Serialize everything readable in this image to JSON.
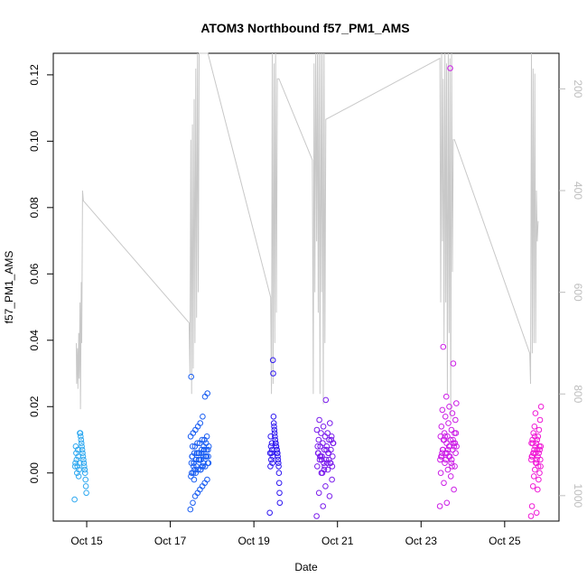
{
  "chart_data": {
    "type": "scatter",
    "title": "ATOM3 Northbound f57_PM1_AMS",
    "xlabel": "Date",
    "ylabel": "f57_PM1_AMS",
    "x_ticks": [
      "Oct 15",
      "Oct 17",
      "Oct 19",
      "Oct 21",
      "Oct 23",
      "Oct 25"
    ],
    "x_tick_days": [
      15,
      17,
      19,
      21,
      23,
      25
    ],
    "xlim_days": [
      14.2,
      26.3
    ],
    "ylim": [
      -0.0145,
      0.1265
    ],
    "y_ticks": [
      0.0,
      0.02,
      0.04,
      0.06,
      0.08,
      0.1,
      0.12
    ],
    "y_tick_labels": [
      "0.00",
      "0.02",
      "0.04",
      "0.06",
      "0.08",
      "0.10",
      "0.12"
    ],
    "y2_ticks": [
      200,
      400,
      600,
      800,
      1000
    ],
    "y2_tick_labels": [
      "200",
      "400",
      "600",
      "800",
      "1000"
    ],
    "y2_reversed": true,
    "y2lim": [
      1050,
      130
    ],
    "grid": false,
    "legend": "none",
    "colors": {
      "axis": "#000000",
      "right_axis": "#bdbdbd",
      "line": "#c8c8c8",
      "cluster_colors": [
        "#2ea8f0",
        "#1a5ef2",
        "#2f18f0",
        "#7a1cec",
        "#cc1ee6",
        "#f01ad6"
      ]
    },
    "series": [
      {
        "type": "scatter",
        "clusters": [
          {
            "x_center": 14.85,
            "x_spread": 0.14,
            "y": [
              -0.008,
              -0.006,
              -0.004,
              -0.002,
              0.0,
              0.001,
              0.002,
              0.003,
              0.004,
              0.005,
              0.006,
              0.007,
              0.008,
              0.009,
              0.01,
              0.011,
              0.012,
              0.012,
              0.003,
              0.001,
              -0.001,
              0.005,
              0.007,
              0.002,
              0.0,
              0.004,
              0.006,
              0.008,
              0.003,
              0.002
            ]
          },
          {
            "x_center": 17.7,
            "x_spread": 0.22,
            "y": [
              -0.011,
              -0.009,
              -0.007,
              -0.006,
              -0.005,
              -0.004,
              -0.003,
              -0.002,
              -0.001,
              0.0,
              0.0,
              0.001,
              0.001,
              0.002,
              0.002,
              0.003,
              0.003,
              0.003,
              0.004,
              0.004,
              0.004,
              0.005,
              0.005,
              0.005,
              0.005,
              0.006,
              0.006,
              0.006,
              0.007,
              0.007,
              0.007,
              0.008,
              0.008,
              0.008,
              0.009,
              0.009,
              0.01,
              0.01,
              0.011,
              0.011,
              0.012,
              0.013,
              0.014,
              0.015,
              0.017,
              0.023,
              0.024,
              0.029,
              0.002,
              0.004,
              0.006,
              0.001,
              0.003,
              0.005,
              0.007,
              0.0,
              -0.002,
              0.002,
              0.004,
              0.006,
              0.008,
              0.009,
              0.003,
              0.005,
              0.001,
              0.006,
              0.004,
              0.002,
              0.007,
              0.005
            ]
          },
          {
            "x_center": 19.5,
            "x_spread": 0.12,
            "y": [
              -0.012,
              -0.009,
              -0.006,
              -0.003,
              0.0,
              0.002,
              0.003,
              0.004,
              0.005,
              0.006,
              0.006,
              0.007,
              0.007,
              0.008,
              0.008,
              0.009,
              0.009,
              0.01,
              0.011,
              0.012,
              0.013,
              0.014,
              0.015,
              0.017,
              0.03,
              0.034,
              0.005,
              0.003,
              0.007,
              0.009,
              0.006,
              0.004,
              0.008,
              0.011,
              0.002,
              0.006
            ]
          },
          {
            "x_center": 20.7,
            "x_spread": 0.2,
            "y": [
              -0.013,
              -0.01,
              -0.007,
              -0.006,
              -0.004,
              -0.002,
              0.0,
              0.001,
              0.002,
              0.003,
              0.003,
              0.004,
              0.004,
              0.005,
              0.005,
              0.006,
              0.006,
              0.007,
              0.007,
              0.008,
              0.008,
              0.009,
              0.009,
              0.01,
              0.01,
              0.011,
              0.011,
              0.012,
              0.012,
              0.013,
              0.014,
              0.015,
              0.016,
              0.022,
              0.002,
              0.004,
              0.006,
              0.008,
              0.001,
              0.003,
              0.005,
              0.007,
              0.009,
              0.0,
              0.004,
              0.006,
              0.002,
              0.01,
              0.005,
              0.003
            ]
          },
          {
            "x_center": 23.65,
            "x_spread": 0.2,
            "y": [
              -0.01,
              -0.009,
              -0.005,
              -0.003,
              -0.001,
              0.0,
              0.001,
              0.002,
              0.003,
              0.004,
              0.005,
              0.005,
              0.006,
              0.006,
              0.007,
              0.007,
              0.008,
              0.008,
              0.009,
              0.009,
              0.01,
              0.01,
              0.011,
              0.011,
              0.012,
              0.012,
              0.013,
              0.014,
              0.015,
              0.016,
              0.017,
              0.018,
              0.019,
              0.02,
              0.021,
              0.023,
              0.033,
              0.038,
              0.122,
              0.004,
              0.006,
              0.008,
              0.01,
              0.003,
              0.005,
              0.007,
              0.009,
              0.011,
              0.002,
              0.006,
              0.008,
              0.012,
              0.004,
              0.01,
              0.007,
              0.005
            ]
          },
          {
            "x_center": 25.75,
            "x_spread": 0.12,
            "y": [
              -0.013,
              -0.012,
              -0.01,
              -0.005,
              -0.004,
              -0.002,
              -0.001,
              0.0,
              0.001,
              0.002,
              0.003,
              0.004,
              0.004,
              0.005,
              0.005,
              0.006,
              0.006,
              0.007,
              0.007,
              0.008,
              0.008,
              0.009,
              0.009,
              0.01,
              0.01,
              0.011,
              0.012,
              0.013,
              0.014,
              0.016,
              0.018,
              0.02,
              0.003,
              0.005,
              0.007,
              0.009,
              0.002,
              0.006,
              0.008,
              0.011,
              0.004,
              0.006
            ]
          }
        ]
      },
      {
        "type": "line",
        "axis": "right",
        "x_days": [
          14.75,
          14.76,
          14.78,
          14.79,
          14.81,
          14.82,
          14.84,
          14.85,
          14.87,
          14.88,
          14.9,
          14.92,
          17.45,
          17.47,
          17.49,
          17.51,
          17.53,
          17.55,
          17.57,
          17.59,
          17.61,
          17.63,
          17.65,
          17.67,
          17.69,
          17.71,
          17.73,
          17.75,
          17.77,
          17.79,
          17.81,
          17.83,
          17.86,
          17.9,
          19.4,
          19.42,
          19.44,
          19.46,
          19.48,
          19.5,
          19.52,
          19.54,
          19.56,
          19.58,
          19.6,
          20.4,
          20.42,
          20.44,
          20.46,
          20.48,
          20.5,
          20.52,
          20.54,
          20.56,
          20.58,
          20.6,
          20.62,
          20.64,
          20.66,
          20.68,
          20.7,
          20.72,
          23.45,
          23.47,
          23.49,
          23.51,
          23.53,
          23.55,
          23.57,
          23.59,
          23.61,
          23.63,
          23.65,
          23.67,
          23.69,
          23.71,
          23.73,
          23.75,
          23.77,
          23.79,
          23.8,
          25.6,
          25.62,
          25.64,
          25.66,
          25.68,
          25.7,
          25.72,
          25.74,
          25.76,
          25.78,
          25.8
        ],
        "y": [
          700,
          780,
          710,
          790,
          680,
          770,
          620,
          830,
          580,
          700,
          400,
          420,
          660,
          760,
          300,
          800,
          270,
          750,
          220,
          700,
          160,
          650,
          110,
          600,
          130,
          130,
          130,
          130,
          130,
          130,
          130,
          130,
          130,
          130,
          610,
          800,
          120,
          780,
          150,
          700,
          130,
          640,
          180,
          180,
          180,
          340,
          800,
          150,
          600,
          130,
          500,
          120,
          640,
          130,
          800,
          130,
          600,
          130,
          820,
          130,
          700,
          260,
          140,
          620,
          130,
          500,
          180,
          700,
          130,
          620,
          150,
          800,
          130,
          680,
          140,
          850,
          130,
          560,
          300,
          300,
          300,
          720,
          780,
          130,
          720,
          160,
          700,
          170,
          700,
          400,
          500,
          460
        ]
      }
    ]
  }
}
